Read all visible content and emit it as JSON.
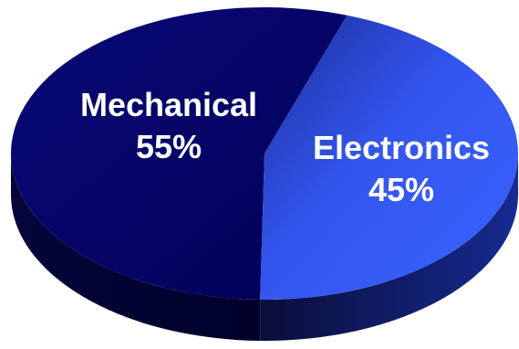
{
  "chart_data": {
    "type": "pie",
    "style": "3d",
    "legend": "none",
    "slices": [
      {
        "label": "Mechanical",
        "value": 55,
        "value_label": "55%",
        "color": "#000066"
      },
      {
        "label": "Electronics",
        "value": 45,
        "value_label": "45%",
        "color": "#3355ee"
      }
    ]
  }
}
